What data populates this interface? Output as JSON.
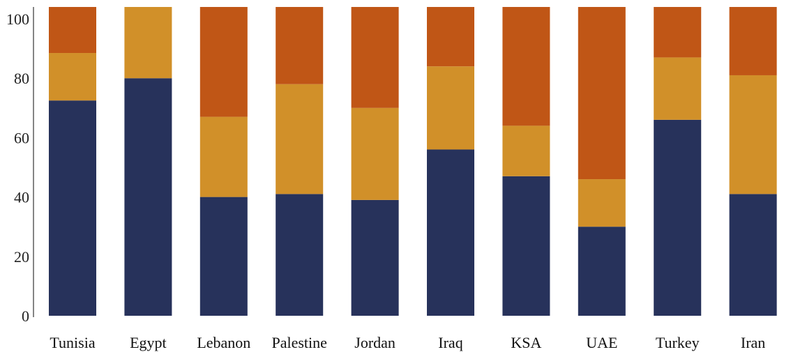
{
  "chart_data": {
    "type": "bar",
    "stacked": true,
    "categories": [
      "Tunisia",
      "Egypt",
      "Lebanon",
      "Palestine",
      "Jordan",
      "Iraq",
      "KSA",
      "UAE",
      "Turkey",
      "Iran"
    ],
    "series": [
      {
        "values": [
          72.5,
          80,
          40,
          41,
          39,
          56,
          47,
          30,
          66,
          41
        ]
      },
      {
        "values": [
          16,
          24,
          27,
          37,
          31,
          28,
          17,
          16,
          21,
          40
        ]
      },
      {
        "values": [
          15.5,
          0,
          37,
          26,
          34,
          20,
          40,
          58,
          17,
          23
        ]
      }
    ],
    "colors": [
      "#27325b",
      "#d19029",
      "#c05616"
    ],
    "ylim": [
      0,
      104
    ],
    "yticks": [
      0,
      20,
      40,
      60,
      80,
      100
    ],
    "ytick_labels": [
      "0",
      "20",
      "40",
      "60",
      "80",
      "100"
    ],
    "xlabel": "",
    "ylabel": "",
    "title": "",
    "grid": false,
    "legend": "none"
  }
}
